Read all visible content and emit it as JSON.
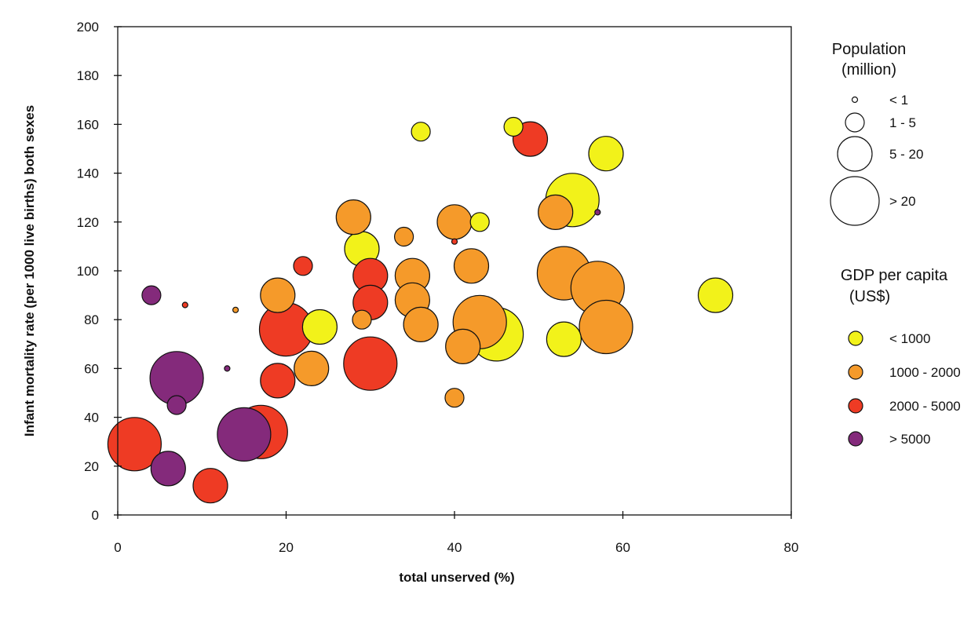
{
  "chart_data": {
    "type": "scatter",
    "subtype": "bubble",
    "xlabel": "total unserved (%)",
    "ylabel": "Infant mortality rate (per 1000 live births) both sexes",
    "xlim": [
      0,
      80
    ],
    "ylim": [
      0,
      200
    ],
    "xticks": [
      0,
      20,
      40,
      60,
      80
    ],
    "yticks": [
      0,
      20,
      40,
      60,
      80,
      100,
      120,
      140,
      160,
      180,
      200
    ],
    "grid": false,
    "legend_position": "right",
    "colors": {
      "lt1000": "#f2f21a",
      "1000-2000": "#f59a2a",
      "2000-5000": "#ee3b24",
      "gt5000": "#842a7b"
    },
    "size_legend": {
      "title_line1": "Population",
      "title_line2": "(million)",
      "entries": [
        {
          "label": "< 1",
          "size": "tiny"
        },
        {
          "label": "1 - 5",
          "size": "small"
        },
        {
          "label": "5 - 20",
          "size": "medium"
        },
        {
          "label": "> 20",
          "size": "large"
        }
      ]
    },
    "color_legend": {
      "title_line1": "GDP per capita",
      "title_line2": "(US$)",
      "entries": [
        {
          "label": "< 1000",
          "group": "lt1000"
        },
        {
          "label": "1000 - 2000",
          "group": "1000-2000"
        },
        {
          "label": "2000 - 5000",
          "group": "2000-5000"
        },
        {
          "label": "> 5000",
          "group": "gt5000"
        }
      ]
    },
    "points": [
      {
        "x": 36,
        "y": 157,
        "size": "small",
        "group": "lt1000"
      },
      {
        "x": 47,
        "y": 159,
        "size": "small",
        "group": "lt1000"
      },
      {
        "x": 58,
        "y": 148,
        "size": "medium",
        "group": "lt1000"
      },
      {
        "x": 54,
        "y": 129,
        "size": "large",
        "group": "lt1000"
      },
      {
        "x": 43,
        "y": 120,
        "size": "small",
        "group": "lt1000"
      },
      {
        "x": 29,
        "y": 109,
        "size": "medium",
        "group": "lt1000"
      },
      {
        "x": 71,
        "y": 90,
        "size": "medium",
        "group": "lt1000"
      },
      {
        "x": 24,
        "y": 77,
        "size": "medium",
        "group": "lt1000"
      },
      {
        "x": 45,
        "y": 74,
        "size": "large",
        "group": "lt1000"
      },
      {
        "x": 53,
        "y": 72,
        "size": "medium",
        "group": "lt1000"
      },
      {
        "x": 28,
        "y": 122,
        "size": "medium",
        "group": "1000-2000"
      },
      {
        "x": 40,
        "y": 120,
        "size": "medium",
        "group": "1000-2000"
      },
      {
        "x": 34,
        "y": 114,
        "size": "small",
        "group": "1000-2000"
      },
      {
        "x": 52,
        "y": 124,
        "size": "medium",
        "group": "1000-2000"
      },
      {
        "x": 42,
        "y": 102,
        "size": "medium",
        "group": "1000-2000"
      },
      {
        "x": 35,
        "y": 98,
        "size": "medium",
        "group": "1000-2000"
      },
      {
        "x": 53,
        "y": 99,
        "size": "large",
        "group": "1000-2000"
      },
      {
        "x": 57,
        "y": 93,
        "size": "large",
        "group": "1000-2000"
      },
      {
        "x": 19,
        "y": 90,
        "size": "medium",
        "group": "1000-2000"
      },
      {
        "x": 35,
        "y": 88,
        "size": "medium",
        "group": "1000-2000"
      },
      {
        "x": 14,
        "y": 84,
        "size": "tiny",
        "group": "1000-2000"
      },
      {
        "x": 29,
        "y": 80,
        "size": "small",
        "group": "1000-2000"
      },
      {
        "x": 36,
        "y": 78,
        "size": "medium",
        "group": "1000-2000"
      },
      {
        "x": 43,
        "y": 79,
        "size": "large",
        "group": "1000-2000"
      },
      {
        "x": 58,
        "y": 77,
        "size": "large",
        "group": "1000-2000"
      },
      {
        "x": 41,
        "y": 69,
        "size": "medium",
        "group": "1000-2000"
      },
      {
        "x": 23,
        "y": 60,
        "size": "medium",
        "group": "1000-2000"
      },
      {
        "x": 40,
        "y": 48,
        "size": "small",
        "group": "1000-2000"
      },
      {
        "x": 49,
        "y": 154,
        "size": "medium",
        "group": "2000-5000"
      },
      {
        "x": 40,
        "y": 112,
        "size": "tiny",
        "group": "2000-5000"
      },
      {
        "x": 22,
        "y": 102,
        "size": "small",
        "group": "2000-5000"
      },
      {
        "x": 30,
        "y": 98,
        "size": "medium",
        "group": "2000-5000"
      },
      {
        "x": 8,
        "y": 86,
        "size": "tiny",
        "group": "2000-5000"
      },
      {
        "x": 30,
        "y": 87,
        "size": "medium",
        "group": "2000-5000"
      },
      {
        "x": 20,
        "y": 76,
        "size": "large",
        "group": "2000-5000"
      },
      {
        "x": 30,
        "y": 62,
        "size": "large",
        "group": "2000-5000"
      },
      {
        "x": 19,
        "y": 55,
        "size": "medium",
        "group": "2000-5000"
      },
      {
        "x": 17,
        "y": 34,
        "size": "large",
        "group": "2000-5000"
      },
      {
        "x": 2,
        "y": 29,
        "size": "large",
        "group": "2000-5000"
      },
      {
        "x": 11,
        "y": 12,
        "size": "medium",
        "group": "2000-5000"
      },
      {
        "x": 57,
        "y": 124,
        "size": "tiny",
        "group": "gt5000"
      },
      {
        "x": 4,
        "y": 90,
        "size": "small",
        "group": "gt5000"
      },
      {
        "x": 13,
        "y": 60,
        "size": "tiny",
        "group": "gt5000"
      },
      {
        "x": 7,
        "y": 56,
        "size": "large",
        "group": "gt5000"
      },
      {
        "x": 7,
        "y": 45,
        "size": "small",
        "group": "gt5000"
      },
      {
        "x": 15,
        "y": 33,
        "size": "large",
        "group": "gt5000"
      },
      {
        "x": 6,
        "y": 19,
        "size": "medium",
        "group": "gt5000"
      }
    ]
  }
}
